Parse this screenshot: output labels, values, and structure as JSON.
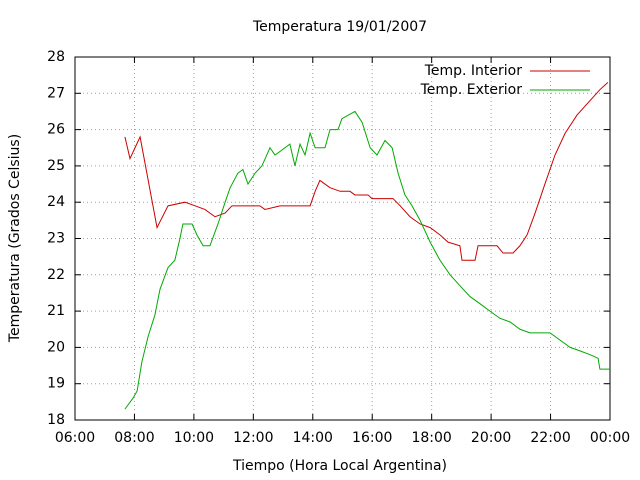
{
  "chart_data": {
    "type": "line",
    "title": "Temperatura 19/01/2007",
    "xlabel": "Tiempo (Hora Local Argentina)",
    "ylabel": "Temperatura (Grados Celsius)",
    "xlim": [
      6,
      24
    ],
    "ylim": [
      18,
      28
    ],
    "xticks": [
      {
        "value": 6,
        "label": "06:00"
      },
      {
        "value": 8,
        "label": "08:00"
      },
      {
        "value": 10,
        "label": "10:00"
      },
      {
        "value": 12,
        "label": "12:00"
      },
      {
        "value": 14,
        "label": "14:00"
      },
      {
        "value": 16,
        "label": "16:00"
      },
      {
        "value": 18,
        "label": "18:00"
      },
      {
        "value": 20,
        "label": "20:00"
      },
      {
        "value": 22,
        "label": "22:00"
      },
      {
        "value": 24,
        "label": "00:00"
      }
    ],
    "yticks": [
      18,
      19,
      20,
      21,
      22,
      23,
      24,
      25,
      26,
      27,
      28
    ],
    "grid": true,
    "legend": "top-right",
    "series": [
      {
        "name": "Temp. Interior",
        "color": "#cc0000",
        "x": [
          7.68,
          7.85,
          8.19,
          8.76,
          9.13,
          9.7,
          10.04,
          10.37,
          10.71,
          11.05,
          11.28,
          12.22,
          12.39,
          12.9,
          13.91,
          14.08,
          14.24,
          14.58,
          14.92,
          15.25,
          15.42,
          15.86,
          15.99,
          16.7,
          16.94,
          17.27,
          17.61,
          17.95,
          18.28,
          18.55,
          18.95,
          19.02,
          19.46,
          19.56,
          20.2,
          20.4,
          20.74,
          20.97,
          21.21,
          21.48,
          21.81,
          22.15,
          22.49,
          22.89,
          23.33,
          23.66,
          23.93
        ],
        "values": [
          25.8,
          25.2,
          25.8,
          23.3,
          23.9,
          24.0,
          23.9,
          23.8,
          23.6,
          23.7,
          23.9,
          23.9,
          23.8,
          23.9,
          23.9,
          24.3,
          24.6,
          24.4,
          24.3,
          24.3,
          24.2,
          24.2,
          24.1,
          24.1,
          23.9,
          23.6,
          23.4,
          23.3,
          23.1,
          22.9,
          22.8,
          22.4,
          22.4,
          22.8,
          22.8,
          22.6,
          22.6,
          22.8,
          23.1,
          23.7,
          24.5,
          25.3,
          25.9,
          26.4,
          26.8,
          27.1,
          27.3
        ]
      },
      {
        "name": "Temp. Exterior",
        "color": "#00aa00",
        "x": [
          7.68,
          7.95,
          8.09,
          8.25,
          8.46,
          8.69,
          8.86,
          9.13,
          9.36,
          9.53,
          9.63,
          9.94,
          10.1,
          10.31,
          10.54,
          10.81,
          11.05,
          11.22,
          11.48,
          11.65,
          11.82,
          12.06,
          12.29,
          12.56,
          12.73,
          12.9,
          13.23,
          13.4,
          13.57,
          13.74,
          13.91,
          14.08,
          14.41,
          14.58,
          14.85,
          14.98,
          15.42,
          15.66,
          15.93,
          16.16,
          16.43,
          16.67,
          16.87,
          17.1,
          17.34,
          17.61,
          17.95,
          18.28,
          18.62,
          18.95,
          19.29,
          19.63,
          19.96,
          20.3,
          20.64,
          20.97,
          21.31,
          21.98,
          22.32,
          22.66,
          23.0,
          23.33,
          23.6,
          23.66,
          24.0
        ],
        "values": [
          18.3,
          18.6,
          18.8,
          19.6,
          20.3,
          20.9,
          21.6,
          22.2,
          22.4,
          23.0,
          23.4,
          23.4,
          23.1,
          22.8,
          22.8,
          23.4,
          24.0,
          24.4,
          24.8,
          24.9,
          24.5,
          24.8,
          25.0,
          25.5,
          25.3,
          25.4,
          25.6,
          25.0,
          25.6,
          25.3,
          25.9,
          25.5,
          25.5,
          26.0,
          26.0,
          26.3,
          26.5,
          26.2,
          25.5,
          25.3,
          25.7,
          25.5,
          24.8,
          24.2,
          23.9,
          23.5,
          22.9,
          22.4,
          22.0,
          21.7,
          21.4,
          21.2,
          21.0,
          20.8,
          20.7,
          20.5,
          20.4,
          20.4,
          20.2,
          20.0,
          19.9,
          19.8,
          19.7,
          19.4,
          19.4
        ]
      }
    ]
  }
}
